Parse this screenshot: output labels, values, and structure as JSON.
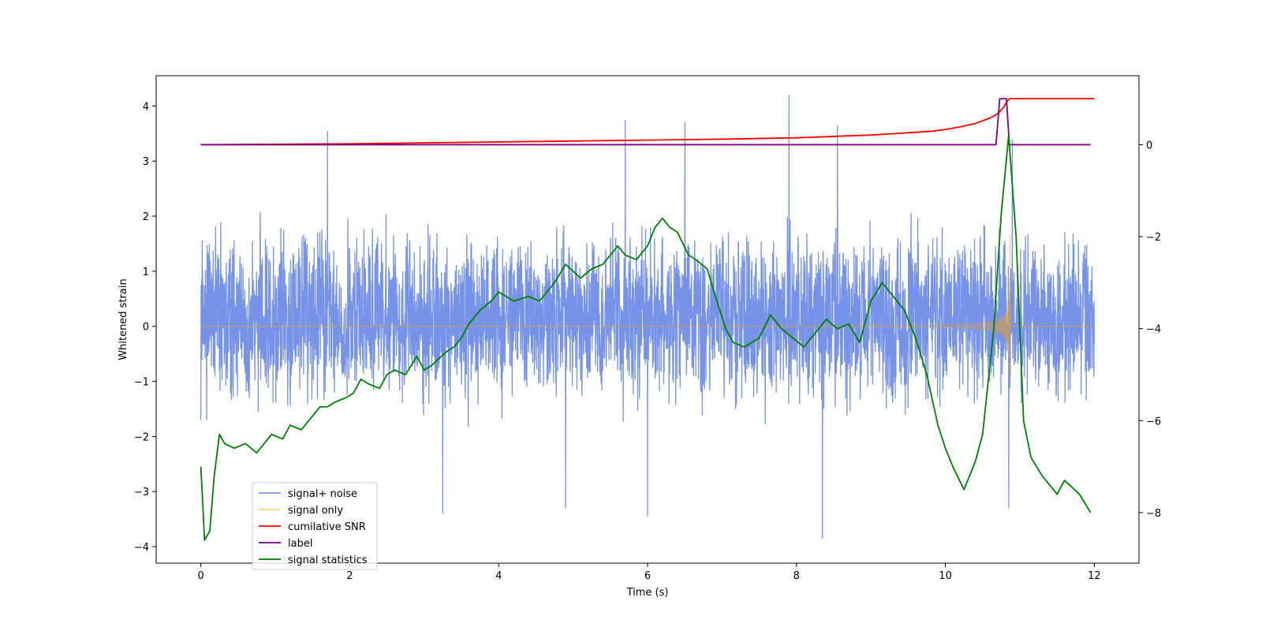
{
  "chart_data": {
    "type": "line",
    "xlabel": "Time (s)",
    "ylabel": "Whitened strain",
    "y2label": "",
    "xlim": [
      -0.6,
      12.6
    ],
    "ylim": [
      -4.3,
      4.55
    ],
    "y2lim": [
      -9.1,
      1.5
    ],
    "x_ticks": [
      0,
      2,
      4,
      6,
      8,
      10,
      12
    ],
    "y_ticks": [
      -4,
      -3,
      -2,
      -1,
      0,
      1,
      2,
      3,
      4
    ],
    "y2_ticks": [
      -8,
      -6,
      -4,
      -2,
      0
    ],
    "grid": false,
    "legend_position": "lower-left",
    "colors": {
      "signal_noise": "#4169e1",
      "signal_only": "#ffa500",
      "cumulative_snr": "#ff0000",
      "label": "#800080",
      "signal_statistics": "#008000"
    },
    "series": [
      {
        "name": "signal+ noise",
        "axis": "left",
        "note_values": "dense noise, roughly within -1.7..2.0 with spikes",
        "spikes": [
          [
            0.0,
            1.7
          ],
          [
            0.0,
            -1.7
          ],
          [
            1.7,
            3.55
          ],
          [
            3.25,
            -3.4
          ],
          [
            4.9,
            -3.3
          ],
          [
            5.7,
            3.75
          ],
          [
            6.0,
            -3.45
          ],
          [
            6.5,
            3.7
          ],
          [
            7.9,
            4.2
          ],
          [
            8.35,
            -3.85
          ],
          [
            8.55,
            3.65
          ],
          [
            10.85,
            -3.3
          ],
          [
            10.9,
            3.4
          ]
        ]
      },
      {
        "name": "signal only",
        "axis": "left",
        "note_values": "chirp; near 0 until ~9.5 s, amplitude grows to about 1.7 at 10.85 s then ends",
        "peak": [
          10.85,
          1.7
        ],
        "trough": [
          10.87,
          -1.75
        ]
      },
      {
        "name": "cumilative SNR",
        "axis": "right",
        "x": [
          0,
          1,
          2,
          3,
          4,
          5,
          6,
          7,
          8,
          8.5,
          9,
          9.5,
          9.8,
          10.0,
          10.2,
          10.4,
          10.55,
          10.65,
          10.72,
          10.78,
          10.82,
          10.86,
          10.9,
          11.2,
          12.0
        ],
        "values": [
          0.0,
          0.01,
          0.02,
          0.04,
          0.06,
          0.08,
          0.1,
          0.12,
          0.15,
          0.18,
          0.21,
          0.26,
          0.29,
          0.33,
          0.39,
          0.46,
          0.55,
          0.62,
          0.7,
          0.81,
          0.92,
          1.0,
          1.0,
          1.0,
          1.0
        ]
      },
      {
        "name": "label",
        "axis": "right",
        "x": [
          0,
          10.68,
          10.73,
          10.82,
          10.86,
          11.95
        ],
        "values": [
          0,
          0,
          1,
          1,
          0,
          0
        ]
      },
      {
        "name": "signal statistics",
        "axis": "right",
        "x": [
          0.0,
          0.05,
          0.12,
          0.18,
          0.25,
          0.32,
          0.45,
          0.6,
          0.75,
          0.85,
          0.95,
          1.1,
          1.2,
          1.35,
          1.5,
          1.6,
          1.7,
          1.8,
          1.95,
          2.05,
          2.15,
          2.25,
          2.4,
          2.5,
          2.6,
          2.75,
          2.9,
          3.0,
          3.1,
          3.3,
          3.4,
          3.5,
          3.6,
          3.75,
          3.9,
          4.0,
          4.2,
          4.4,
          4.55,
          4.75,
          4.9,
          5.1,
          5.25,
          5.4,
          5.5,
          5.6,
          5.7,
          5.85,
          6.0,
          6.1,
          6.2,
          6.3,
          6.4,
          6.55,
          6.65,
          6.8,
          6.95,
          7.05,
          7.15,
          7.3,
          7.5,
          7.65,
          7.8,
          7.95,
          8.1,
          8.25,
          8.4,
          8.55,
          8.7,
          8.85,
          9.0,
          9.15,
          9.3,
          9.45,
          9.6,
          9.75,
          9.9,
          10.0,
          10.1,
          10.25,
          10.4,
          10.5,
          10.65,
          10.75,
          10.85,
          10.95,
          11.05,
          11.15,
          11.3,
          11.5,
          11.6,
          11.8,
          11.95
        ],
        "values": [
          -7.0,
          -8.6,
          -8.4,
          -7.2,
          -6.3,
          -6.5,
          -6.6,
          -6.5,
          -6.7,
          -6.5,
          -6.3,
          -6.4,
          -6.1,
          -6.2,
          -5.9,
          -5.7,
          -5.7,
          -5.6,
          -5.5,
          -5.4,
          -5.1,
          -5.2,
          -5.3,
          -5.0,
          -4.9,
          -5.0,
          -4.6,
          -4.9,
          -4.8,
          -4.5,
          -4.4,
          -4.2,
          -3.9,
          -3.6,
          -3.4,
          -3.2,
          -3.4,
          -3.3,
          -3.4,
          -3.0,
          -2.6,
          -2.9,
          -2.7,
          -2.6,
          -2.4,
          -2.2,
          -2.4,
          -2.5,
          -2.2,
          -1.8,
          -1.6,
          -1.8,
          -1.9,
          -2.4,
          -2.5,
          -2.7,
          -3.5,
          -4.0,
          -4.3,
          -4.4,
          -4.2,
          -3.7,
          -4.0,
          -4.2,
          -4.4,
          -4.1,
          -3.8,
          -4.0,
          -3.9,
          -4.3,
          -3.4,
          -3.0,
          -3.3,
          -3.6,
          -4.2,
          -5.0,
          -6.1,
          -6.6,
          -7.0,
          -7.5,
          -6.9,
          -6.3,
          -4.0,
          -1.5,
          0.2,
          -2.0,
          -6.0,
          -6.8,
          -7.2,
          -7.6,
          -7.3,
          -7.6,
          -8.0
        ]
      }
    ]
  }
}
